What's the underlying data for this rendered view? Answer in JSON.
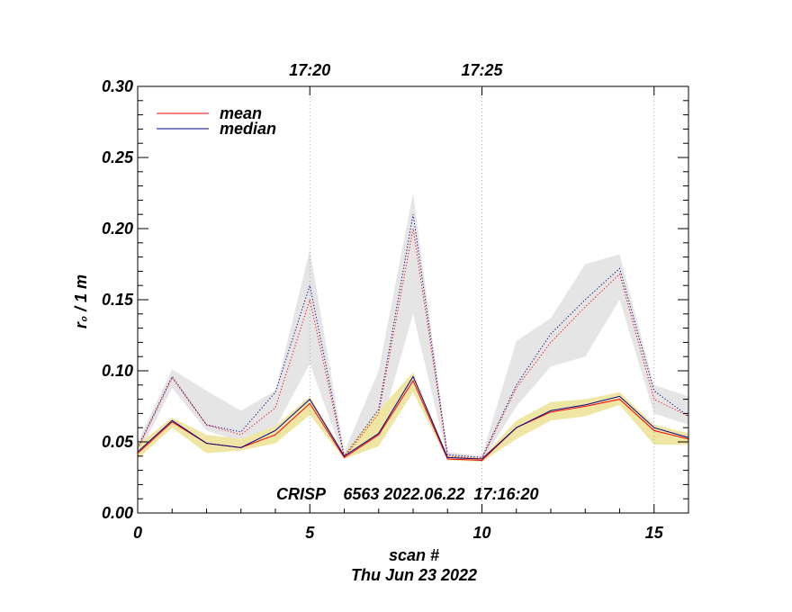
{
  "chart_data": {
    "type": "line",
    "ylabel": "r₀ / 1 m",
    "xlabel": "scan #",
    "date": "Thu Jun 23 2022",
    "annotation": "CRISP    6563 2022.06.22  17:16:20",
    "xlim": [
      0,
      16
    ],
    "ylim": [
      0,
      0.3
    ],
    "x_ticks": [
      0,
      5,
      10,
      15
    ],
    "y_ticks": [
      0.0,
      0.05,
      0.1,
      0.15,
      0.2,
      0.25,
      0.3
    ],
    "x_tick_labels": [
      "0",
      "5",
      "10",
      "15"
    ],
    "y_tick_labels": [
      "0.00",
      "0.05",
      "0.10",
      "0.15",
      "0.20",
      "0.25",
      "0.30"
    ],
    "top_ticks": [
      {
        "x": 5,
        "label": "17:20"
      },
      {
        "x": 10,
        "label": "17:25"
      },
      {
        "x": 15,
        "label": ""
      }
    ],
    "legend": {
      "position": "top-left",
      "entries": [
        "mean",
        "median"
      ]
    },
    "colors": {
      "mean": "#ff0000",
      "median": "#00008b",
      "band_high": "#e5e5e5",
      "band_low": "#f0e6a4"
    },
    "x": [
      0,
      1,
      2,
      3,
      4,
      5,
      6,
      7,
      8,
      9,
      10,
      11,
      12,
      13,
      14,
      15,
      16
    ],
    "series": [
      {
        "name": "mean",
        "style": "solid",
        "values": [
          0.042,
          0.064,
          0.049,
          0.046,
          0.055,
          0.077,
          0.039,
          0.055,
          0.093,
          0.038,
          0.037,
          0.06,
          0.071,
          0.075,
          0.08,
          0.058,
          0.052
        ]
      },
      {
        "name": "median",
        "style": "solid",
        "values": [
          0.043,
          0.065,
          0.049,
          0.046,
          0.058,
          0.08,
          0.04,
          0.056,
          0.096,
          0.039,
          0.038,
          0.06,
          0.072,
          0.076,
          0.082,
          0.06,
          0.053
        ]
      },
      {
        "name": "mean",
        "style": "dotted",
        "values": [
          0.045,
          0.095,
          0.062,
          0.055,
          0.074,
          0.15,
          0.039,
          0.07,
          0.2,
          0.04,
          0.038,
          0.088,
          0.12,
          0.145,
          0.168,
          0.08,
          0.068
        ]
      },
      {
        "name": "median",
        "style": "dotted",
        "values": [
          0.046,
          0.096,
          0.062,
          0.057,
          0.085,
          0.16,
          0.04,
          0.073,
          0.21,
          0.041,
          0.039,
          0.09,
          0.126,
          0.15,
          0.172,
          0.086,
          0.068
        ]
      }
    ],
    "bands": [
      {
        "name": "upper-spread",
        "lower": [
          0.04,
          0.088,
          0.058,
          0.05,
          0.06,
          0.105,
          0.038,
          0.055,
          0.14,
          0.038,
          0.036,
          0.075,
          0.103,
          0.11,
          0.15,
          0.07,
          0.062
        ],
        "upper": [
          0.05,
          0.101,
          0.086,
          0.072,
          0.086,
          0.185,
          0.043,
          0.1,
          0.225,
          0.043,
          0.04,
          0.121,
          0.137,
          0.175,
          0.182,
          0.09,
          0.082
        ]
      },
      {
        "name": "lower-spread",
        "lower": [
          0.038,
          0.06,
          0.042,
          0.044,
          0.049,
          0.069,
          0.038,
          0.047,
          0.085,
          0.037,
          0.036,
          0.052,
          0.065,
          0.068,
          0.076,
          0.048,
          0.048
        ],
        "upper": [
          0.048,
          0.067,
          0.055,
          0.052,
          0.061,
          0.082,
          0.042,
          0.072,
          0.099,
          0.04,
          0.039,
          0.065,
          0.078,
          0.08,
          0.085,
          0.062,
          0.056
        ]
      }
    ]
  }
}
